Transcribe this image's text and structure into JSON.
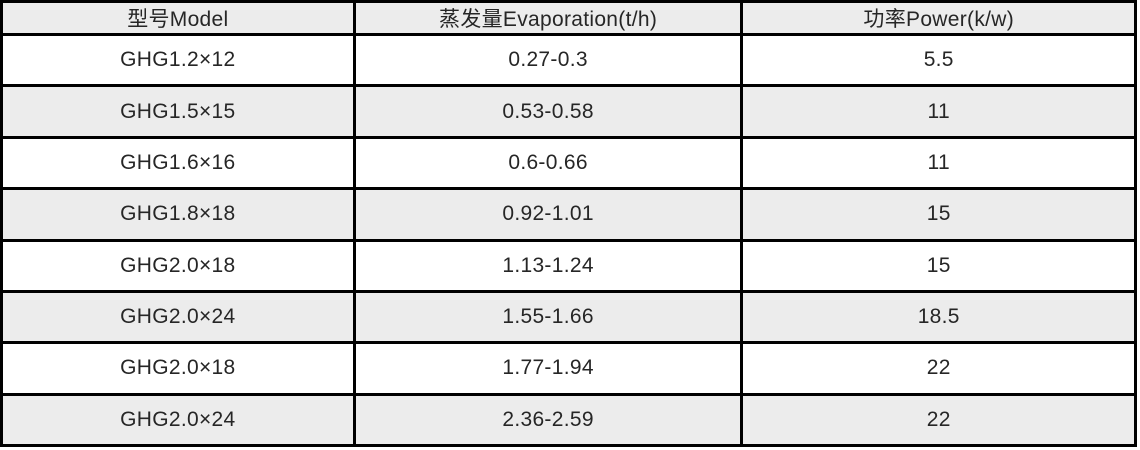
{
  "table": {
    "headers": [
      "型号Model",
      "蒸发量Evaporation(t/h)",
      "功率Power(k/w)"
    ],
    "rows": [
      [
        "GHG1.2×12",
        "0.27-0.3",
        "5.5"
      ],
      [
        "GHG1.5×15",
        "0.53-0.58",
        "11"
      ],
      [
        "GHG1.6×16",
        "0.6-0.66",
        "11"
      ],
      [
        "GHG1.8×18",
        "0.92-1.01",
        "15"
      ],
      [
        "GHG2.0×18",
        "1.13-1.24",
        "15"
      ],
      [
        "GHG2.0×24",
        "1.55-1.66",
        "18.5"
      ],
      [
        "GHG2.0×18",
        "1.77-1.94",
        "22"
      ],
      [
        "GHG2.0×24",
        "2.36-2.59",
        "22"
      ]
    ]
  },
  "chart_data": {
    "type": "table",
    "title": "",
    "columns": [
      "型号Model",
      "蒸发量Evaporation(t/h)",
      "功率Power(k/w)"
    ],
    "rows": [
      {
        "model": "GHG1.2×12",
        "evaporation_t_h": "0.27-0.3",
        "power_kw": 5.5
      },
      {
        "model": "GHG1.5×15",
        "evaporation_t_h": "0.53-0.58",
        "power_kw": 11
      },
      {
        "model": "GHG1.6×16",
        "evaporation_t_h": "0.6-0.66",
        "power_kw": 11
      },
      {
        "model": "GHG1.8×18",
        "evaporation_t_h": "0.92-1.01",
        "power_kw": 15
      },
      {
        "model": "GHG2.0×18",
        "evaporation_t_h": "1.13-1.24",
        "power_kw": 15
      },
      {
        "model": "GHG2.0×24",
        "evaporation_t_h": "1.55-1.66",
        "power_kw": 18.5
      },
      {
        "model": "GHG2.0×18",
        "evaporation_t_h": "1.77-1.94",
        "power_kw": 22
      },
      {
        "model": "GHG2.0×24",
        "evaporation_t_h": "2.36-2.59",
        "power_kw": 22
      }
    ],
    "layout_hints": {
      "header_background": "#ececec",
      "alternate_row_background": "#ececec",
      "row_background": "#ffffff",
      "border_color": "#000000",
      "striping": "even data rows shaded (2nd, 4th, 6th, 8th)"
    }
  },
  "colors": {
    "header_bg": "#ececec",
    "row_alt_bg": "#ececec",
    "row_bg": "#ffffff",
    "border": "#000000",
    "text": "#262626"
  }
}
